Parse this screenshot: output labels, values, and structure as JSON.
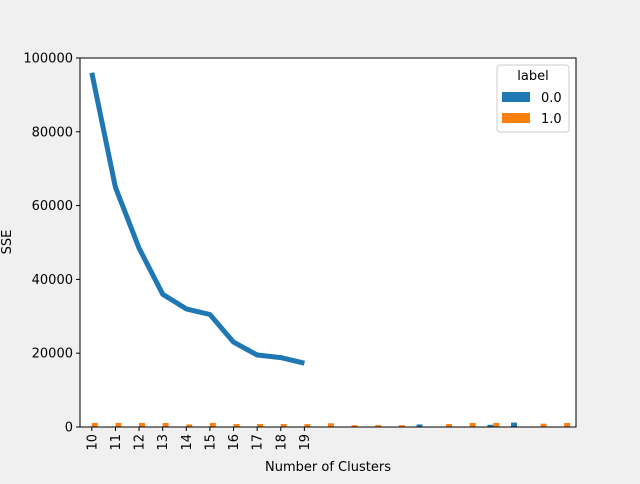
{
  "chart_data": {
    "type": "bar",
    "xlabel": "Number of Clusters",
    "ylabel": "SSE",
    "ylim": [
      0,
      100000
    ],
    "yticks": [
      0,
      20000,
      40000,
      60000,
      80000,
      100000
    ],
    "x_tick_labels": [
      "10",
      "11",
      "12",
      "13",
      "14",
      "15",
      "16",
      "17",
      "18",
      "19"
    ],
    "grid": false,
    "legend": {
      "title": "label",
      "placement": "top-right",
      "entries": [
        "0.0",
        "1.0"
      ]
    },
    "colors": {
      "series_0": "#1f77b4",
      "series_1": "#ff7f0e",
      "line": "#1f77b4"
    },
    "bar_groups": [
      {
        "values": [
          0,
          1100
        ]
      },
      {
        "values": [
          0,
          1100
        ]
      },
      {
        "values": [
          0,
          1100
        ]
      },
      {
        "values": [
          0,
          1100
        ]
      },
      {
        "values": [
          0,
          700
        ]
      },
      {
        "values": [
          0,
          1100
        ]
      },
      {
        "values": [
          0,
          800
        ]
      },
      {
        "values": [
          0,
          800
        ]
      },
      {
        "values": [
          0,
          800
        ]
      },
      {
        "values": [
          0,
          800
        ]
      },
      {
        "values": [
          0,
          1000
        ]
      },
      {
        "values": [
          0,
          500
        ]
      },
      {
        "values": [
          0,
          500
        ]
      },
      {
        "values": [
          0,
          500
        ]
      },
      {
        "values": [
          700,
          0
        ]
      },
      {
        "values": [
          0,
          800
        ]
      },
      {
        "values": [
          0,
          1100
        ]
      },
      {
        "values": [
          600,
          1100
        ]
      },
      {
        "values": [
          1200,
          0
        ]
      },
      {
        "values": [
          0,
          900
        ]
      },
      {
        "values": [
          0,
          1100
        ]
      }
    ],
    "line_series": {
      "x": [
        "10",
        "11",
        "12",
        "13",
        "14",
        "15",
        "16",
        "17",
        "18",
        "19"
      ],
      "values": [
        96000,
        65000,
        48500,
        36000,
        32000,
        30500,
        23000,
        19500,
        18800,
        17300
      ]
    }
  }
}
